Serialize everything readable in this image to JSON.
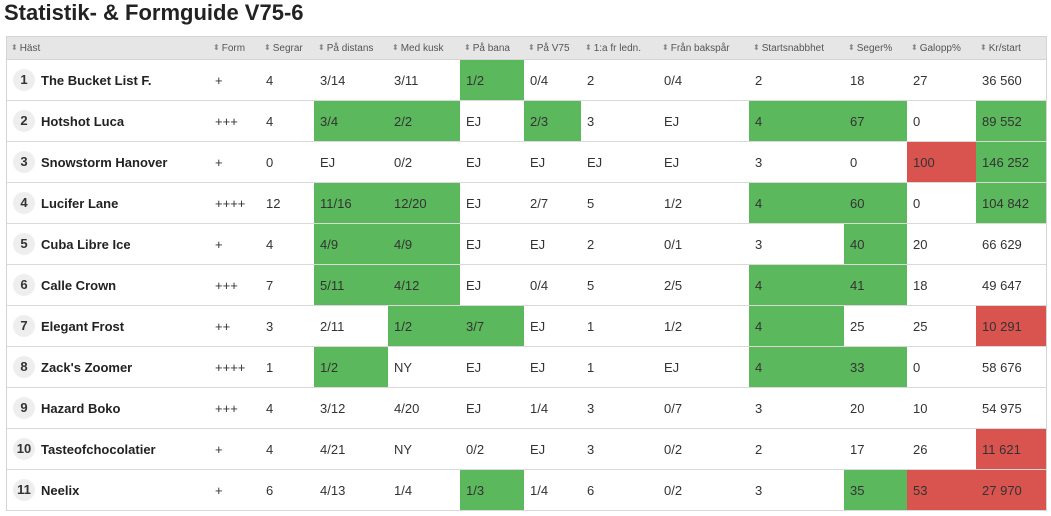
{
  "title": "Statistik- & Formguide V75-6",
  "colors": {
    "good": "#5cb85c",
    "bad": "#d9534f",
    "header_bg": "#e6e6e6"
  },
  "columns": [
    "Häst",
    "Form",
    "Segrar",
    "På distans",
    "Med kusk",
    "På bana",
    "På V75",
    "1:a fr ledn.",
    "Från bakspår",
    "Startsnabbhet",
    "Seger%",
    "Galopp%",
    "Kr/start"
  ],
  "rows": [
    {
      "num": "1",
      "name": "The Bucket List F.",
      "cells": [
        "+",
        "4",
        "3/14",
        "3/11",
        "1/2",
        "0/4",
        "2",
        "0/4",
        "2",
        "18",
        "27",
        "36 560"
      ],
      "status": [
        "",
        "",
        "",
        "",
        "good",
        "",
        "",
        "",
        "",
        "",
        "",
        ""
      ]
    },
    {
      "num": "2",
      "name": "Hotshot Luca",
      "cells": [
        "+++",
        "4",
        "3/4",
        "2/2",
        "EJ",
        "2/3",
        "3",
        "EJ",
        "4",
        "67",
        "0",
        "89 552"
      ],
      "status": [
        "",
        "",
        "good",
        "good",
        "",
        "good",
        "",
        "",
        "good",
        "good",
        "",
        "good"
      ]
    },
    {
      "num": "3",
      "name": "Snowstorm Hanover",
      "cells": [
        "+",
        "0",
        "EJ",
        "0/2",
        "EJ",
        "EJ",
        "EJ",
        "EJ",
        "3",
        "0",
        "100",
        "146 252"
      ],
      "status": [
        "",
        "",
        "",
        "",
        "",
        "",
        "",
        "",
        "",
        "",
        "bad",
        "good"
      ]
    },
    {
      "num": "4",
      "name": "Lucifer Lane",
      "cells": [
        "++++",
        "12",
        "11/16",
        "12/20",
        "EJ",
        "2/7",
        "5",
        "1/2",
        "4",
        "60",
        "0",
        "104 842"
      ],
      "status": [
        "",
        "",
        "good",
        "good",
        "",
        "",
        "",
        "",
        "good",
        "good",
        "",
        "good"
      ]
    },
    {
      "num": "5",
      "name": "Cuba Libre Ice",
      "cells": [
        "+",
        "4",
        "4/9",
        "4/9",
        "EJ",
        "EJ",
        "2",
        "0/1",
        "3",
        "40",
        "20",
        "66 629"
      ],
      "status": [
        "",
        "",
        "good",
        "good",
        "",
        "",
        "",
        "",
        "",
        "good",
        "",
        ""
      ]
    },
    {
      "num": "6",
      "name": "Calle Crown",
      "cells": [
        "+++",
        "7",
        "5/11",
        "4/12",
        "EJ",
        "0/4",
        "5",
        "2/5",
        "4",
        "41",
        "18",
        "49 647"
      ],
      "status": [
        "",
        "",
        "good",
        "good",
        "",
        "",
        "",
        "",
        "good",
        "good",
        "",
        ""
      ]
    },
    {
      "num": "7",
      "name": "Elegant Frost",
      "cells": [
        "++",
        "3",
        "2/11",
        "1/2",
        "3/7",
        "EJ",
        "1",
        "1/2",
        "4",
        "25",
        "25",
        "10 291"
      ],
      "status": [
        "",
        "",
        "",
        "good",
        "good",
        "",
        "",
        "",
        "good",
        "",
        "",
        "bad"
      ]
    },
    {
      "num": "8",
      "name": "Zack's Zoomer",
      "cells": [
        "++++",
        "1",
        "1/2",
        "NY",
        "EJ",
        "EJ",
        "1",
        "EJ",
        "4",
        "33",
        "0",
        "58 676"
      ],
      "status": [
        "",
        "",
        "good",
        "",
        "",
        "",
        "",
        "",
        "good",
        "good",
        "",
        ""
      ]
    },
    {
      "num": "9",
      "name": "Hazard Boko",
      "cells": [
        "+++",
        "4",
        "3/12",
        "4/20",
        "EJ",
        "1/4",
        "3",
        "0/7",
        "3",
        "20",
        "10",
        "54 975"
      ],
      "status": [
        "",
        "",
        "",
        "",
        "",
        "",
        "",
        "",
        "",
        "",
        "",
        ""
      ]
    },
    {
      "num": "10",
      "name": "Tasteofchocolatier",
      "cells": [
        "+",
        "4",
        "4/21",
        "NY",
        "0/2",
        "EJ",
        "3",
        "0/2",
        "2",
        "17",
        "26",
        "11 621"
      ],
      "status": [
        "",
        "",
        "",
        "",
        "",
        "",
        "",
        "",
        "",
        "",
        "",
        "bad"
      ]
    },
    {
      "num": "11",
      "name": "Neelix",
      "cells": [
        "+",
        "6",
        "4/13",
        "1/4",
        "1/3",
        "1/4",
        "6",
        "0/2",
        "3",
        "35",
        "53",
        "27 970"
      ],
      "status": [
        "",
        "",
        "",
        "",
        "good",
        "",
        "",
        "",
        "",
        "good",
        "bad",
        "bad"
      ]
    }
  ]
}
